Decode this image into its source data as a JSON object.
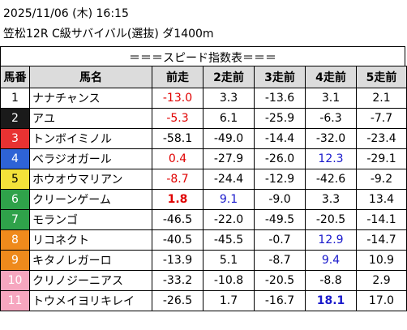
{
  "header": {
    "datetime": "2025/11/06 (木) 16:15",
    "race": "笠松12R C級サバイバル(選抜) ダ1400m"
  },
  "table_title": "＝＝＝スピード指数表＝＝＝",
  "columns": [
    "馬番",
    "馬名",
    "前走",
    "2走前",
    "3走前",
    "4走前",
    "5走前"
  ],
  "colors": {
    "waku1": "#ffffff",
    "waku2": "#1a1a1a",
    "waku3": "#e83232",
    "waku4": "#2e63d6",
    "waku5": "#f3e23a",
    "waku6": "#2fa24a",
    "waku7": "#ef8a1c",
    "waku8": "#f6a6bf",
    "highlight_red": "#e00000",
    "highlight_blue": "#1a1acc"
  },
  "rows": [
    {
      "num": "1",
      "waku": "waku1",
      "name": "ナナチャンス",
      "vals": [
        {
          "v": "-13.0",
          "c": "red"
        },
        {
          "v": "3.3"
        },
        {
          "v": "-13.6"
        },
        {
          "v": "3.1"
        },
        {
          "v": "2.1"
        }
      ]
    },
    {
      "num": "2",
      "waku": "waku2",
      "name": "アユ",
      "vals": [
        {
          "v": "-5.3",
          "c": "red"
        },
        {
          "v": "6.1"
        },
        {
          "v": "-25.9"
        },
        {
          "v": "-6.3"
        },
        {
          "v": "-7.7"
        }
      ]
    },
    {
      "num": "3",
      "waku": "waku3",
      "name": "トンボイミノル",
      "vals": [
        {
          "v": "-58.1"
        },
        {
          "v": "-49.0"
        },
        {
          "v": "-14.4"
        },
        {
          "v": "-32.0"
        },
        {
          "v": "-23.4"
        }
      ]
    },
    {
      "num": "4",
      "waku": "waku4",
      "name": "ベラジオガール",
      "vals": [
        {
          "v": "0.4",
          "c": "red"
        },
        {
          "v": "-27.9"
        },
        {
          "v": "-26.0"
        },
        {
          "v": "12.3",
          "c": "blue"
        },
        {
          "v": "-29.1"
        }
      ]
    },
    {
      "num": "5",
      "waku": "waku5",
      "name": "ホウオウマリアン",
      "vals": [
        {
          "v": "-8.7",
          "c": "red"
        },
        {
          "v": "-24.4"
        },
        {
          "v": "-12.9"
        },
        {
          "v": "-42.6"
        },
        {
          "v": "-9.2"
        }
      ]
    },
    {
      "num": "6",
      "waku": "waku6",
      "name": "クリーンゲーム",
      "vals": [
        {
          "v": "1.8",
          "c": "red",
          "b": true
        },
        {
          "v": "9.1",
          "c": "blue"
        },
        {
          "v": "-9.0"
        },
        {
          "v": "3.3"
        },
        {
          "v": "13.4"
        }
      ]
    },
    {
      "num": "7",
      "waku": "waku6",
      "name": "モランゴ",
      "vals": [
        {
          "v": "-46.5"
        },
        {
          "v": "-22.0"
        },
        {
          "v": "-49.5"
        },
        {
          "v": "-20.5"
        },
        {
          "v": "-14.1"
        }
      ]
    },
    {
      "num": "8",
      "waku": "waku7",
      "name": "リコネクト",
      "vals": [
        {
          "v": "-40.5"
        },
        {
          "v": "-45.5"
        },
        {
          "v": "-0.7"
        },
        {
          "v": "12.9",
          "c": "blue"
        },
        {
          "v": "-14.7"
        }
      ]
    },
    {
      "num": "9",
      "waku": "waku7",
      "name": "キタノレガーロ",
      "vals": [
        {
          "v": "-13.9"
        },
        {
          "v": "5.1"
        },
        {
          "v": "-8.7"
        },
        {
          "v": "9.4",
          "c": "blue"
        },
        {
          "v": "10.9"
        }
      ]
    },
    {
      "num": "10",
      "waku": "waku8",
      "name": "クリノジーニアス",
      "vals": [
        {
          "v": "-33.2"
        },
        {
          "v": "-10.8"
        },
        {
          "v": "-20.5"
        },
        {
          "v": "-8.8"
        },
        {
          "v": "2.9"
        }
      ]
    },
    {
      "num": "11",
      "waku": "waku8",
      "name": "トウメイヨリキレイ",
      "vals": [
        {
          "v": "-26.5"
        },
        {
          "v": "1.7"
        },
        {
          "v": "-16.7"
        },
        {
          "v": "18.1",
          "c": "blue",
          "b": true
        },
        {
          "v": "17.0"
        }
      ]
    }
  ]
}
